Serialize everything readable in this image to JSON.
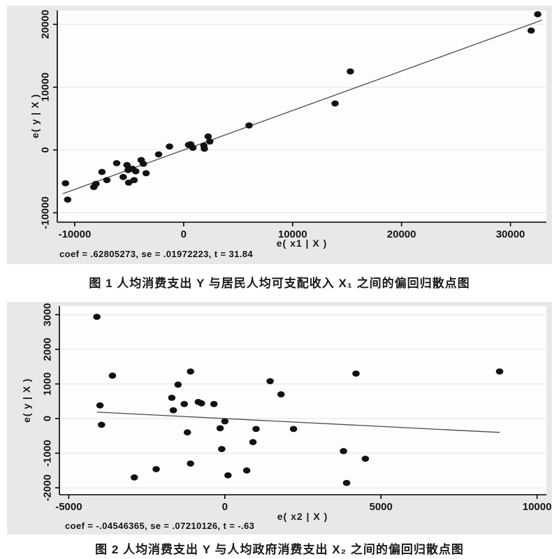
{
  "colors": {
    "panel_bg": "#e8e8e8",
    "plot_bg": "#fdfdfd",
    "grid": "#e4e4e4",
    "axis": "#000000",
    "point": "#111111",
    "fit_line": "#4a4a4a"
  },
  "figure1": {
    "caption": "图 1  人均消费支出 Y 与居民人均可支配收入 X₁ 之间的偏回归散点图"
  },
  "figure2": {
    "caption": "图 2  人均消费支出 Y 与人均政府消费支出 X₂ 之间的偏回归散点图"
  },
  "chart_data": [
    {
      "type": "scatter",
      "xlabel": "e( x1 | X )",
      "ylabel": "e( y | X )",
      "stats": "coef = .62805273, se = .01972223, t = 31.84",
      "xlim": [
        -11600,
        33300
      ],
      "ylim": [
        -11500,
        22200
      ],
      "xticks": [
        -10000,
        0,
        10000,
        20000,
        30000
      ],
      "yticks": [
        -10000,
        0,
        10000,
        20000
      ],
      "grid": "horizontal",
      "legend": "none",
      "fit_line": {
        "slope": 0.62805273,
        "intercept": 0,
        "x_start": -11100,
        "x_end": 32900
      },
      "points": [
        [
          -10850,
          -5300
        ],
        [
          -10650,
          -7900
        ],
        [
          -8250,
          -5900
        ],
        [
          -8050,
          -5400
        ],
        [
          -7500,
          -3500
        ],
        [
          -7050,
          -4800
        ],
        [
          -6150,
          -2100
        ],
        [
          -5550,
          -4300
        ],
        [
          -5200,
          -2400
        ],
        [
          -5100,
          -3200
        ],
        [
          -5050,
          -5200
        ],
        [
          -4700,
          -3000
        ],
        [
          -4550,
          -4800
        ],
        [
          -4400,
          -3400
        ],
        [
          -3900,
          -1600
        ],
        [
          -3700,
          -2200
        ],
        [
          -3450,
          -3700
        ],
        [
          -2300,
          -700
        ],
        [
          -1300,
          550
        ],
        [
          450,
          800
        ],
        [
          650,
          900
        ],
        [
          850,
          350
        ],
        [
          1850,
          700
        ],
        [
          1900,
          200
        ],
        [
          2250,
          2150
        ],
        [
          2400,
          1350
        ],
        [
          6000,
          3900
        ],
        [
          13900,
          7400
        ],
        [
          15300,
          12500
        ],
        [
          31900,
          19000
        ],
        [
          32500,
          21600
        ]
      ]
    },
    {
      "type": "scatter",
      "xlabel": "e( x2 | X )",
      "ylabel": "e( y | X )",
      "stats": "coef = -.04546365, se = .07210126, t = -.63",
      "xlim": [
        -5300,
        10300
      ],
      "ylim": [
        -2200,
        3250
      ],
      "xticks": [
        -5000,
        0,
        5000,
        10000
      ],
      "yticks": [
        -2000,
        -1000,
        0,
        1000,
        2000,
        3000
      ],
      "grid": "horizontal",
      "legend": "none",
      "fit_line": {
        "slope": -0.04546365,
        "intercept": 0,
        "x_start": -4100,
        "x_end": 8800
      },
      "points": [
        [
          -4100,
          2940
        ],
        [
          -4000,
          380
        ],
        [
          -3950,
          -180
        ],
        [
          -3600,
          1240
        ],
        [
          -2900,
          -1700
        ],
        [
          -2200,
          -1460
        ],
        [
          -1700,
          600
        ],
        [
          -1650,
          240
        ],
        [
          -1500,
          980
        ],
        [
          -1300,
          420
        ],
        [
          -1200,
          -400
        ],
        [
          -1100,
          1360
        ],
        [
          -1100,
          -1300
        ],
        [
          -850,
          480
        ],
        [
          -750,
          440
        ],
        [
          -350,
          420
        ],
        [
          -150,
          -280
        ],
        [
          0,
          -80
        ],
        [
          -100,
          -880
        ],
        [
          100,
          -1640
        ],
        [
          700,
          -1500
        ],
        [
          900,
          -680
        ],
        [
          1000,
          -300
        ],
        [
          1450,
          1080
        ],
        [
          1800,
          700
        ],
        [
          2200,
          -300
        ],
        [
          3800,
          -940
        ],
        [
          3900,
          -1860
        ],
        [
          4200,
          1300
        ],
        [
          4500,
          -1160
        ],
        [
          8800,
          1360
        ]
      ]
    }
  ]
}
